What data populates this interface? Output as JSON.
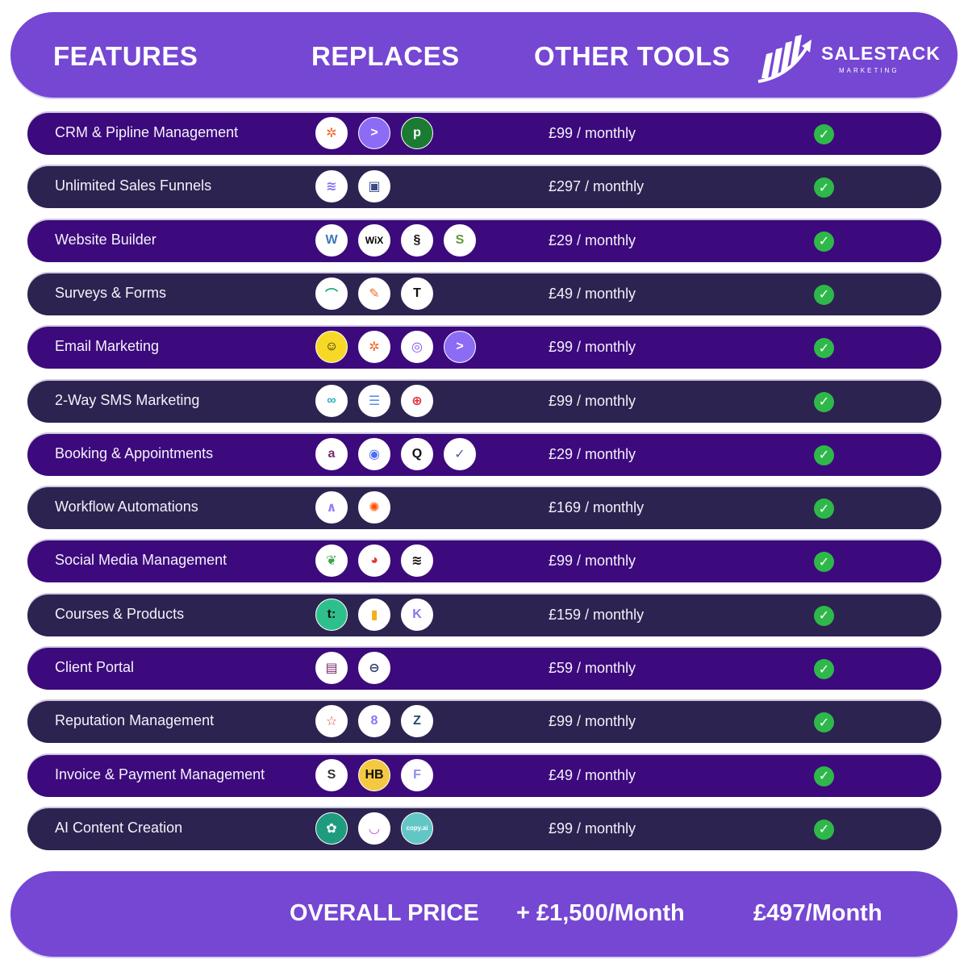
{
  "header": {
    "features": "FEATURES",
    "replaces": "REPLACES",
    "other_tools": "OTHER TOOLS",
    "logo_text": "SALESTACK",
    "logo_sub": "MARKETING"
  },
  "colors": {
    "header": "#7547d3",
    "row_purple": "#3c0a7c",
    "row_dark": "#2d2350",
    "check": "#2fb84a"
  },
  "rows": [
    {
      "feature": "CRM & Pipline Management",
      "price": "£99 / monthly",
      "icons": [
        {
          "name": "hubspot-icon",
          "bg": "#ffffff",
          "fg": "#f0642b",
          "g": "✲"
        },
        {
          "name": "activecampaign-icon",
          "bg": "#8c6cf5",
          "fg": "#ffffff",
          "g": ">"
        },
        {
          "name": "pipedrive-icon",
          "bg": "#1c7b33",
          "fg": "#ffffff",
          "g": "p"
        }
      ]
    },
    {
      "feature": "Unlimited Sales Funnels",
      "price": "£297 / monthly",
      "icons": [
        {
          "name": "layers-icon",
          "bg": "#ffffff",
          "fg": "#8a6ef0",
          "g": "≋"
        },
        {
          "name": "clickfunnels-icon",
          "bg": "#ffffff",
          "fg": "#3b4a8a",
          "g": "▣"
        }
      ]
    },
    {
      "feature": "Website Builder",
      "price": "£29 / monthly",
      "icons": [
        {
          "name": "wordpress-icon",
          "bg": "#ffffff",
          "fg": "#3c7ab7",
          "g": "W"
        },
        {
          "name": "wix-icon",
          "bg": "#ffffff",
          "fg": "#000000",
          "g": "WiX"
        },
        {
          "name": "squarespace-icon",
          "bg": "#ffffff",
          "fg": "#111111",
          "g": "§"
        },
        {
          "name": "shopify-icon",
          "bg": "#ffffff",
          "fg": "#5e9b3c",
          "g": "S"
        }
      ]
    },
    {
      "feature": "Surveys & Forms",
      "price": "£49 / monthly",
      "icons": [
        {
          "name": "surveymonkey-icon",
          "bg": "#ffffff",
          "fg": "#1dab6e",
          "g": "⌒"
        },
        {
          "name": "jotform-icon",
          "bg": "#ffffff",
          "fg": "#f26b38",
          "g": "✎"
        },
        {
          "name": "typeform-icon",
          "bg": "#ffffff",
          "fg": "#111111",
          "g": "T"
        }
      ]
    },
    {
      "feature": "Email Marketing",
      "price": "£99 / monthly",
      "icons": [
        {
          "name": "mailchimp-icon",
          "bg": "#f7d826",
          "fg": "#111111",
          "g": "☺"
        },
        {
          "name": "hubspot-icon",
          "bg": "#ffffff",
          "fg": "#f0642b",
          "g": "✲"
        },
        {
          "name": "constant-contact-icon",
          "bg": "#ffffff",
          "fg": "#7a55f0",
          "g": "◎"
        },
        {
          "name": "activecampaign-icon",
          "bg": "#8c6cf5",
          "fg": "#ffffff",
          "g": ">"
        }
      ]
    },
    {
      "feature": "2-Way SMS Marketing",
      "price": "£99 / monthly",
      "icons": [
        {
          "name": "link-icon",
          "bg": "#ffffff",
          "fg": "#2fb0c7",
          "g": "∞"
        },
        {
          "name": "chat-icon",
          "bg": "#ffffff",
          "fg": "#5b8def",
          "g": "☰"
        },
        {
          "name": "twilio-icon",
          "bg": "#ffffff",
          "fg": "#e22a3a",
          "g": "⊕"
        }
      ]
    },
    {
      "feature": "Booking & Appointments",
      "price": "£29 / monthly",
      "icons": [
        {
          "name": "acuity-icon",
          "bg": "#ffffff",
          "fg": "#7a2a6b",
          "g": "a"
        },
        {
          "name": "calendly-icon",
          "bg": "#ffffff",
          "fg": "#4d6ef0",
          "g": "◉"
        },
        {
          "name": "calendar-q-icon",
          "bg": "#ffffff",
          "fg": "#111111",
          "g": "Q"
        },
        {
          "name": "schedule-check-icon",
          "bg": "#ffffff",
          "fg": "#4b58a8",
          "g": "✓"
        }
      ]
    },
    {
      "feature": "Workflow Automations",
      "price": "£169 / monthly",
      "icons": [
        {
          "name": "make-icon",
          "bg": "#ffffff",
          "fg": "#9a7cf2",
          "g": "∧"
        },
        {
          "name": "zapier-icon",
          "bg": "#ffffff",
          "fg": "#ff4f00",
          "g": "✺"
        }
      ]
    },
    {
      "feature": "Social Media Management",
      "price": "£99 / monthly",
      "icons": [
        {
          "name": "sprout-icon",
          "bg": "#ffffff",
          "fg": "#3aa64a",
          "g": "❦"
        },
        {
          "name": "hootsuite-icon",
          "bg": "#ffffff",
          "fg": "#e2333a",
          "g": "◕"
        },
        {
          "name": "buffer-icon",
          "bg": "#ffffff",
          "fg": "#111111",
          "g": "≋"
        }
      ]
    },
    {
      "feature": "Courses & Products",
      "price": "£159 / monthly",
      "icons": [
        {
          "name": "teachable-icon",
          "bg": "#2ec08c",
          "fg": "#111111",
          "g": "t:"
        },
        {
          "name": "analytics-icon",
          "bg": "#ffffff",
          "fg": "#f2b01d",
          "g": "▮"
        },
        {
          "name": "kajabi-icon",
          "bg": "#ffffff",
          "fg": "#8b73f0",
          "g": "K"
        }
      ]
    },
    {
      "feature": "Client Portal",
      "price": "£59 / monthly",
      "icons": [
        {
          "name": "portal-icon",
          "bg": "#ffffff",
          "fg": "#7a2b6e",
          "g": "▤"
        },
        {
          "name": "link-box-icon",
          "bg": "#ffffff",
          "fg": "#2e3c6e",
          "g": "⊖"
        }
      ]
    },
    {
      "feature": "Reputation Management",
      "price": "£99 / monthly",
      "icons": [
        {
          "name": "review-chat-icon",
          "bg": "#ffffff",
          "fg": "#e2474f",
          "g": "☆"
        },
        {
          "name": "birdeye-icon",
          "bg": "#ffffff",
          "fg": "#8b73f0",
          "g": "8"
        },
        {
          "name": "reputation-z-icon",
          "bg": "#ffffff",
          "fg": "#264b6b",
          "g": "Z"
        }
      ]
    },
    {
      "feature": "Invoice & Payment Management",
      "price": "£49 / monthly",
      "icons": [
        {
          "name": "stripe-s-icon",
          "bg": "#ffffff",
          "fg": "#333333",
          "g": "S"
        },
        {
          "name": "honeybook-icon",
          "bg": "#f5c842",
          "fg": "#111111",
          "g": "HB"
        },
        {
          "name": "freshbooks-icon",
          "bg": "#ffffff",
          "fg": "#8b8df0",
          "g": "F"
        }
      ]
    },
    {
      "feature": "AI Content Creation",
      "price": "£99 / monthly",
      "icons": [
        {
          "name": "openai-icon",
          "bg": "#1f9c7e",
          "fg": "#ffffff",
          "g": "✿"
        },
        {
          "name": "ai-smile-icon",
          "bg": "#ffffff",
          "fg": "#c23be0",
          "g": "◡"
        },
        {
          "name": "copyai-icon",
          "bg": "#62c7c4",
          "fg": "#ffffff",
          "g": "copy.ai"
        }
      ]
    }
  ],
  "footer": {
    "label": "OVERALL PRICE",
    "other_total": "+ £1,500/Month",
    "our_price": "£497/Month"
  }
}
